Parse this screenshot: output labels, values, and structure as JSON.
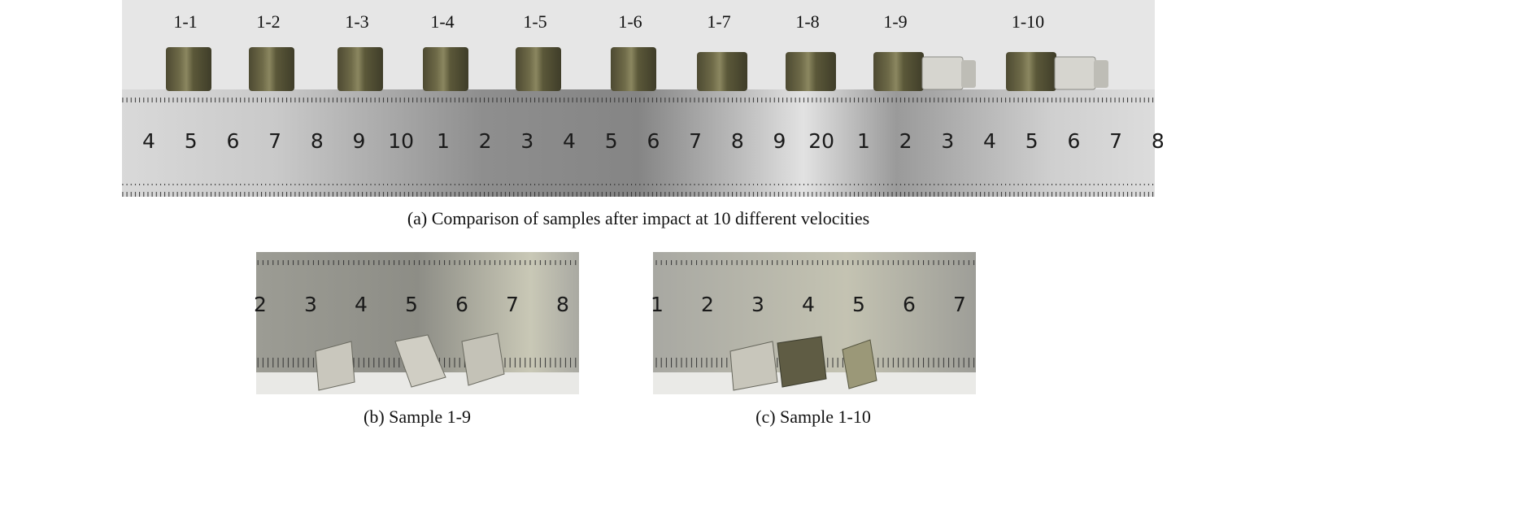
{
  "figure": {
    "panels": [
      {
        "samples": [
          "1-1",
          "1-2",
          "1-3",
          "1-4",
          "1-5",
          "1-6",
          "1-7",
          "1-8",
          "1-9",
          "1-10"
        ],
        "ruler_numbers": [
          "4",
          "5",
          "6",
          "7",
          "8",
          "9",
          "10",
          "1",
          "2",
          "3",
          "4",
          "5",
          "6",
          "7",
          "8",
          "9",
          "20",
          "1",
          "2",
          "3",
          "4",
          "5",
          "6",
          "7",
          "8"
        ],
        "caption": "(a) Comparison of samples after impact at 10 different velocities"
      },
      {
        "ruler_numbers": [
          "2",
          "3",
          "4",
          "5",
          "6",
          "7",
          "8"
        ],
        "caption": "(b) Sample 1-9"
      },
      {
        "ruler_numbers": [
          "1",
          "2",
          "3",
          "4",
          "5",
          "6",
          "7"
        ],
        "caption": "(c) Sample 1-10"
      }
    ]
  }
}
